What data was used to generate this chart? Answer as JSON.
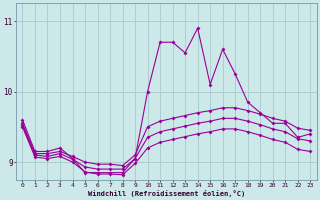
{
  "xlabel": "Windchill (Refroidissement éolien,°C)",
  "background_color": "#cce8e8",
  "grid_color": "#aacfcf",
  "line_color": "#990099",
  "xlim": [
    -0.5,
    23.5
  ],
  "ylim": [
    8.75,
    11.25
  ],
  "yticks": [
    9,
    10,
    11
  ],
  "xticks": [
    0,
    1,
    2,
    3,
    4,
    5,
    6,
    7,
    8,
    9,
    10,
    11,
    12,
    13,
    14,
    15,
    16,
    17,
    18,
    19,
    20,
    21,
    22,
    23
  ],
  "hours": [
    0,
    1,
    2,
    3,
    4,
    5,
    6,
    7,
    8,
    9,
    10,
    11,
    12,
    13,
    14,
    15,
    16,
    17,
    18,
    19,
    20,
    21,
    22,
    23
  ],
  "line1": [
    9.6,
    9.15,
    9.15,
    9.2,
    9.05,
    8.85,
    8.85,
    8.85,
    8.85,
    9.05,
    10.0,
    10.7,
    10.7,
    10.55,
    10.9,
    10.1,
    10.6,
    10.25,
    9.85,
    9.7,
    9.55,
    9.55,
    9.35,
    9.4
  ],
  "line2": [
    9.55,
    9.12,
    9.12,
    9.15,
    9.08,
    9.0,
    8.97,
    8.97,
    8.95,
    9.1,
    9.5,
    9.58,
    9.62,
    9.66,
    9.7,
    9.73,
    9.77,
    9.77,
    9.73,
    9.68,
    9.62,
    9.58,
    9.48,
    9.45
  ],
  "line3": [
    9.52,
    9.1,
    9.08,
    9.12,
    9.04,
    8.93,
    8.9,
    8.9,
    8.9,
    9.05,
    9.35,
    9.43,
    9.47,
    9.51,
    9.55,
    9.58,
    9.62,
    9.62,
    9.58,
    9.53,
    9.47,
    9.43,
    9.33,
    9.3
  ],
  "line4": [
    9.5,
    9.07,
    9.05,
    9.08,
    9.0,
    8.86,
    8.83,
    8.83,
    8.82,
    8.98,
    9.2,
    9.28,
    9.32,
    9.36,
    9.4,
    9.43,
    9.47,
    9.47,
    9.43,
    9.38,
    9.32,
    9.28,
    9.18,
    9.15
  ]
}
